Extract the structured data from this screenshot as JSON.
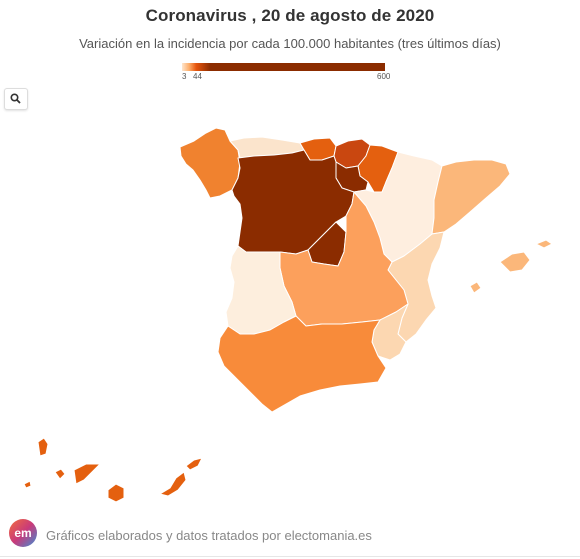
{
  "title": "Coronavirus , 20 de agosto de 2020",
  "subtitle": "Variación en la incidencia por cada 100.000 habitantes (tres últimos días)",
  "legend": {
    "min_label": "3",
    "mid_label": "44",
    "max_label": "600",
    "min": 3,
    "mid": 44,
    "max": 600,
    "colors": [
      "#fee6ce",
      "#fdae6b",
      "#e6550d",
      "#8b2c00"
    ]
  },
  "map_controls": {
    "search_icon": "search-icon"
  },
  "regions": {
    "galicia": {
      "name": "Galicia",
      "color": "#f0822f"
    },
    "asturias": {
      "name": "Asturias",
      "color": "#fbe4cc"
    },
    "cantabria": {
      "name": "Cantabria",
      "color": "#e4600f"
    },
    "pais_vasco": {
      "name": "País Vasco",
      "color": "#c94710"
    },
    "navarra": {
      "name": "Navarra",
      "color": "#e4600f"
    },
    "la_rioja": {
      "name": "La Rioja",
      "color": "#8b2c00"
    },
    "castilla_y_leon": {
      "name": "Castilla y León",
      "color": "#8b2c00"
    },
    "madrid": {
      "name": "Madrid",
      "color": "#8b2c00"
    },
    "aragon": {
      "name": "Aragón",
      "color": "#feeedf"
    },
    "cataluna": {
      "name": "Cataluña",
      "color": "#fbb77a"
    },
    "comunidad_valenciana": {
      "name": "Comunidad Valenciana",
      "color": "#fcd7b1"
    },
    "baleares": {
      "name": "Islas Baleares",
      "color": "#fbb77a"
    },
    "castilla_la_mancha": {
      "name": "Castilla-La Mancha",
      "color": "#fca05c"
    },
    "extremadura": {
      "name": "Extremadura",
      "color": "#fdeedd"
    },
    "murcia": {
      "name": "Región de Murcia",
      "color": "#fcd7b1"
    },
    "andalucia": {
      "name": "Andalucía",
      "color": "#f88b3a"
    },
    "canarias": {
      "name": "Canarias",
      "color": "#e4600f"
    }
  },
  "footer": {
    "logo_text": "em",
    "text": "Gráficos elaborados y datos tratados por electomania.es"
  }
}
